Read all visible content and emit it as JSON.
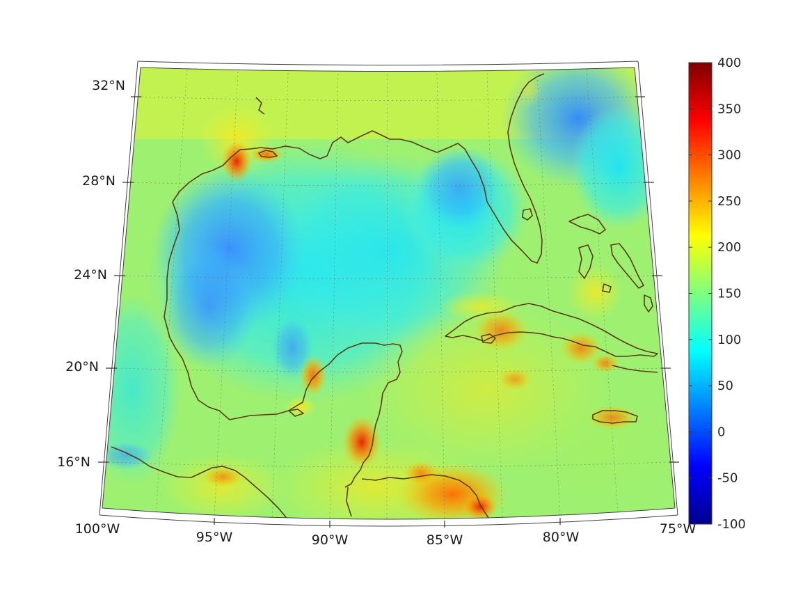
{
  "map": {
    "lon_range": [
      -100,
      -75
    ],
    "lat_range": [
      14,
      33
    ],
    "lon_tick_labels": [
      "100°W",
      "95°W",
      "90°W",
      "85°W",
      "80°W",
      "75°W"
    ],
    "lat_tick_labels": [
      "32°N",
      "28°N",
      "24°N",
      "20°N",
      "16°N"
    ],
    "coastline_color": "#5a3a14",
    "colormap": "jet"
  },
  "colorbar": {
    "min": -100,
    "max": 400,
    "tick_labels": [
      "400",
      "350",
      "300",
      "250",
      "200",
      "150",
      "100",
      "50",
      "0",
      "-50",
      "-100"
    ],
    "colors": [
      "#7f0000",
      "#ff0000",
      "#ffff00",
      "#00ffff",
      "#0000ff",
      "#00008f"
    ]
  }
}
